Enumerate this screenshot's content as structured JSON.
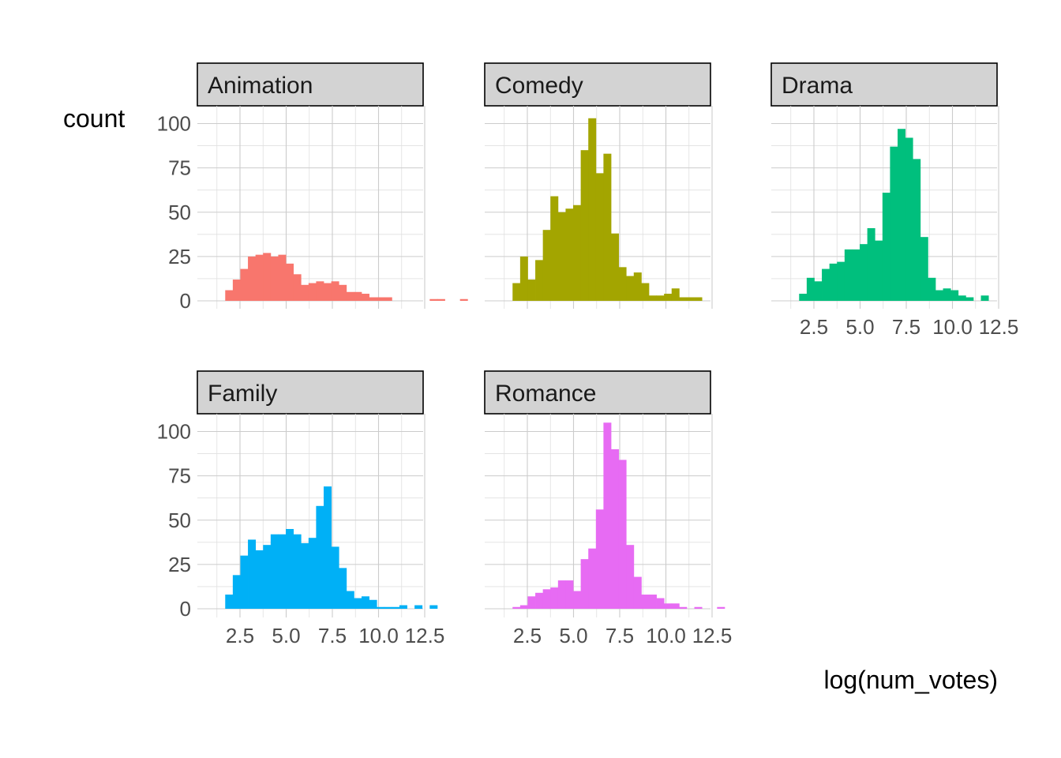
{
  "chart_data": {
    "type": "bar",
    "subtype": "faceted-histogram",
    "xlabel": "log(num_votes)",
    "ylabel": "count",
    "xlim": [
      1.2,
      13.5
    ],
    "ylim": [
      0,
      110
    ],
    "x_ticks": [
      "2.5",
      "5.0",
      "7.5",
      "10.0",
      "12.5"
    ],
    "y_ticks": [
      "0",
      "25",
      "50",
      "75",
      "100"
    ],
    "x_tick_values": [
      2.5,
      5.0,
      7.5,
      10.0,
      12.5
    ],
    "y_tick_values": [
      0,
      25,
      50,
      75,
      100
    ],
    "grid": true,
    "legend": "none",
    "bin_width": 0.41,
    "bin_start": 1.7,
    "panels": [
      {
        "name": "Animation",
        "color": "#F8766D",
        "values": [
          6,
          12,
          18,
          25,
          26,
          27,
          25,
          26,
          21,
          15,
          9,
          10,
          11,
          10,
          11,
          9,
          5,
          5,
          4,
          2,
          2,
          2,
          0,
          0,
          0,
          0,
          0,
          1,
          1,
          0,
          0,
          1
        ]
      },
      {
        "name": "Comedy",
        "color": "#A3A500",
        "values": [
          10,
          25,
          12,
          23,
          40,
          59,
          50,
          52,
          54,
          85,
          103,
          72,
          83,
          38,
          19,
          14,
          16,
          10,
          3,
          3,
          4,
          7,
          2,
          2,
          2
        ]
      },
      {
        "name": "Drama",
        "color": "#00BF7D",
        "values": [
          4,
          13,
          11,
          18,
          21,
          22,
          29,
          29,
          32,
          41,
          34,
          61,
          87,
          97,
          92,
          80,
          36,
          13,
          6,
          7,
          6,
          3,
          2,
          0,
          3
        ]
      },
      {
        "name": "Family",
        "color": "#00B0F6",
        "values": [
          8,
          19,
          30,
          39,
          33,
          36,
          42,
          42,
          45,
          42,
          37,
          40,
          58,
          69,
          35,
          23,
          10,
          6,
          7,
          5,
          1,
          1,
          1,
          2,
          0,
          2,
          0,
          2
        ]
      },
      {
        "name": "Romance",
        "color": "#E76BF3",
        "values": [
          1,
          2,
          7,
          9,
          11,
          12,
          16,
          16,
          10,
          28,
          34,
          56,
          105,
          90,
          84,
          36,
          18,
          8,
          8,
          6,
          3,
          3,
          1,
          0,
          1,
          0,
          0,
          1
        ]
      }
    ]
  }
}
